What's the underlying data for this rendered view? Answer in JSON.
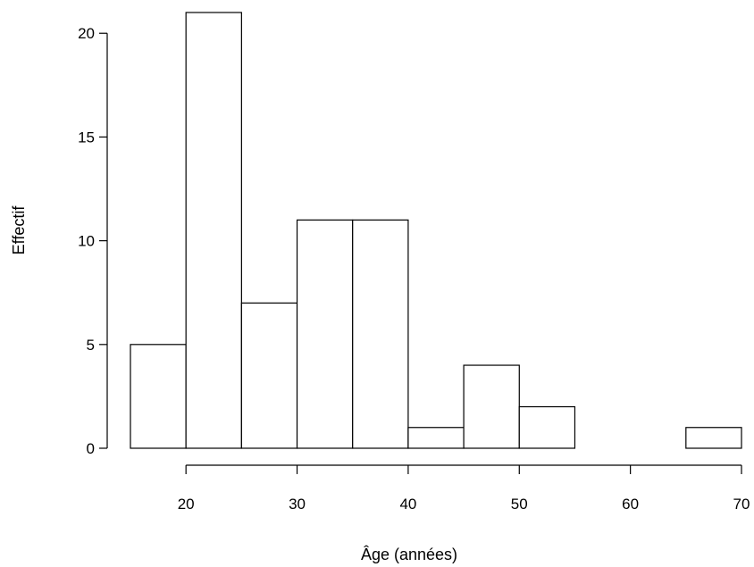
{
  "chart_data": {
    "type": "bar",
    "title": "",
    "xlabel": "Âge (années)",
    "ylabel": "Effectif",
    "bins": [
      {
        "from": 15,
        "to": 20,
        "count": 5
      },
      {
        "from": 20,
        "to": 25,
        "count": 21
      },
      {
        "from": 25,
        "to": 30,
        "count": 7
      },
      {
        "from": 30,
        "to": 35,
        "count": 11
      },
      {
        "from": 35,
        "to": 40,
        "count": 11
      },
      {
        "from": 40,
        "to": 45,
        "count": 1
      },
      {
        "from": 45,
        "to": 50,
        "count": 4
      },
      {
        "from": 50,
        "to": 55,
        "count": 2
      },
      {
        "from": 55,
        "to": 60,
        "count": 0
      },
      {
        "from": 60,
        "to": 65,
        "count": 0
      },
      {
        "from": 65,
        "to": 70,
        "count": 1
      }
    ],
    "xlim": [
      15,
      70
    ],
    "ylim": [
      0,
      21
    ],
    "x_ticks": [
      20,
      30,
      40,
      50,
      60,
      70
    ],
    "y_ticks": [
      0,
      5,
      10,
      15,
      20
    ],
    "grid": false,
    "bar_fill": "#ffffff",
    "bar_stroke": "#000000"
  }
}
